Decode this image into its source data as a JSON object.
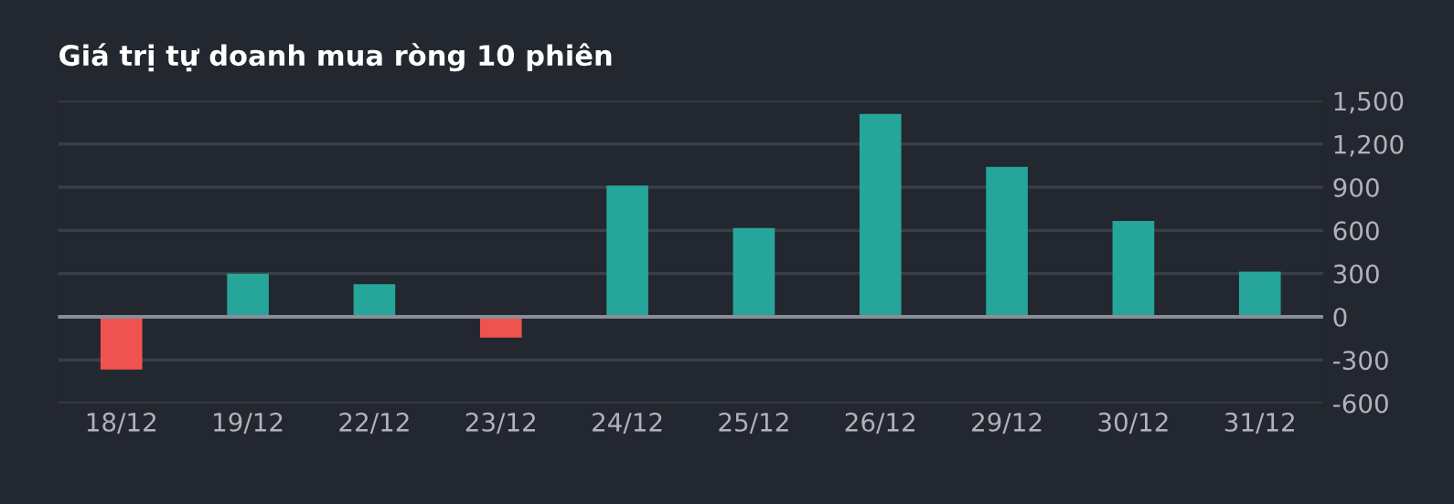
{
  "chart_data": {
    "type": "bar",
    "title": "Giá trị tự doanh mua ròng 10 phiên",
    "categories": [
      "18/12",
      "19/12",
      "22/12",
      "23/12",
      "24/12",
      "25/12",
      "26/12",
      "29/12",
      "30/12",
      "31/12"
    ],
    "values": [
      -367,
      300,
      227,
      -145,
      911,
      616,
      1409,
      1042,
      666,
      313
    ],
    "colors": [
      "#ef5350",
      "#26a69a",
      "#26a69a",
      "#ef5350",
      "#26a69a",
      "#26a69a",
      "#26a69a",
      "#26a69a",
      "#26a69a",
      "#26a69a"
    ],
    "ylim": [
      -600,
      1500
    ],
    "yticks": [
      {
        "value": -600,
        "label": "-600"
      },
      {
        "value": -300,
        "label": "-300"
      },
      0,
      300,
      600,
      900,
      {
        "value": 1200,
        "label": "1,200"
      },
      {
        "value": 1500,
        "label": "1,500"
      }
    ],
    "grid": "y"
  }
}
